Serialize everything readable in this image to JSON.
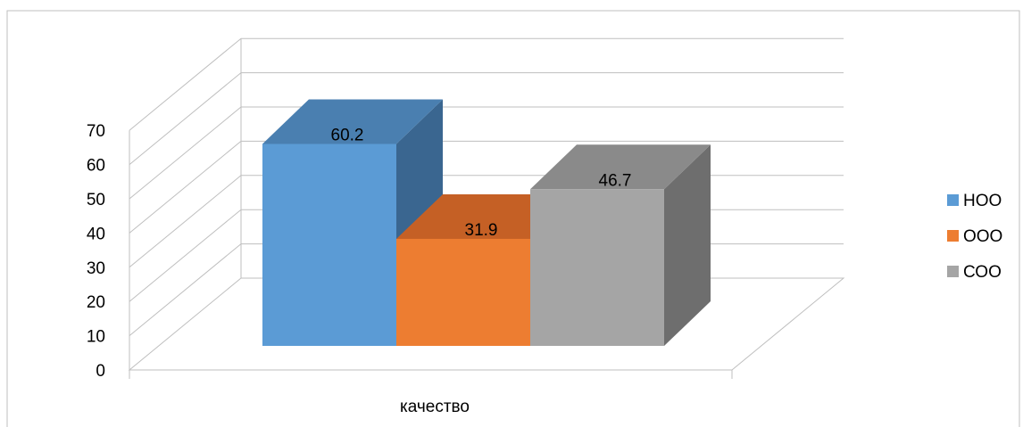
{
  "chart_data": {
    "type": "bar",
    "style": "3d-clustered-column",
    "categories": [
      "качество"
    ],
    "series": [
      {
        "name": "НОО",
        "values": [
          60.2
        ],
        "color": "#5B9BD5",
        "top_color": "#4A7FB0",
        "side_color": "#3A6690"
      },
      {
        "name": "ООО",
        "values": [
          31.9
        ],
        "color": "#ED7D31",
        "top_color": "#C56025",
        "side_color": "#B0561F"
      },
      {
        "name": "СОО",
        "values": [
          46.7
        ],
        "color": "#A5A5A5",
        "top_color": "#8A8A8A",
        "side_color": "#6E6E6E"
      }
    ],
    "data_labels": [
      "60.2",
      "31.9",
      "46.7"
    ],
    "yticks": [
      "0",
      "10",
      "20",
      "30",
      "40",
      "50",
      "60",
      "70"
    ],
    "ylim": [
      0,
      70
    ],
    "grid": true,
    "legend": "right",
    "title": "",
    "xlabel": "",
    "ylabel": ""
  }
}
